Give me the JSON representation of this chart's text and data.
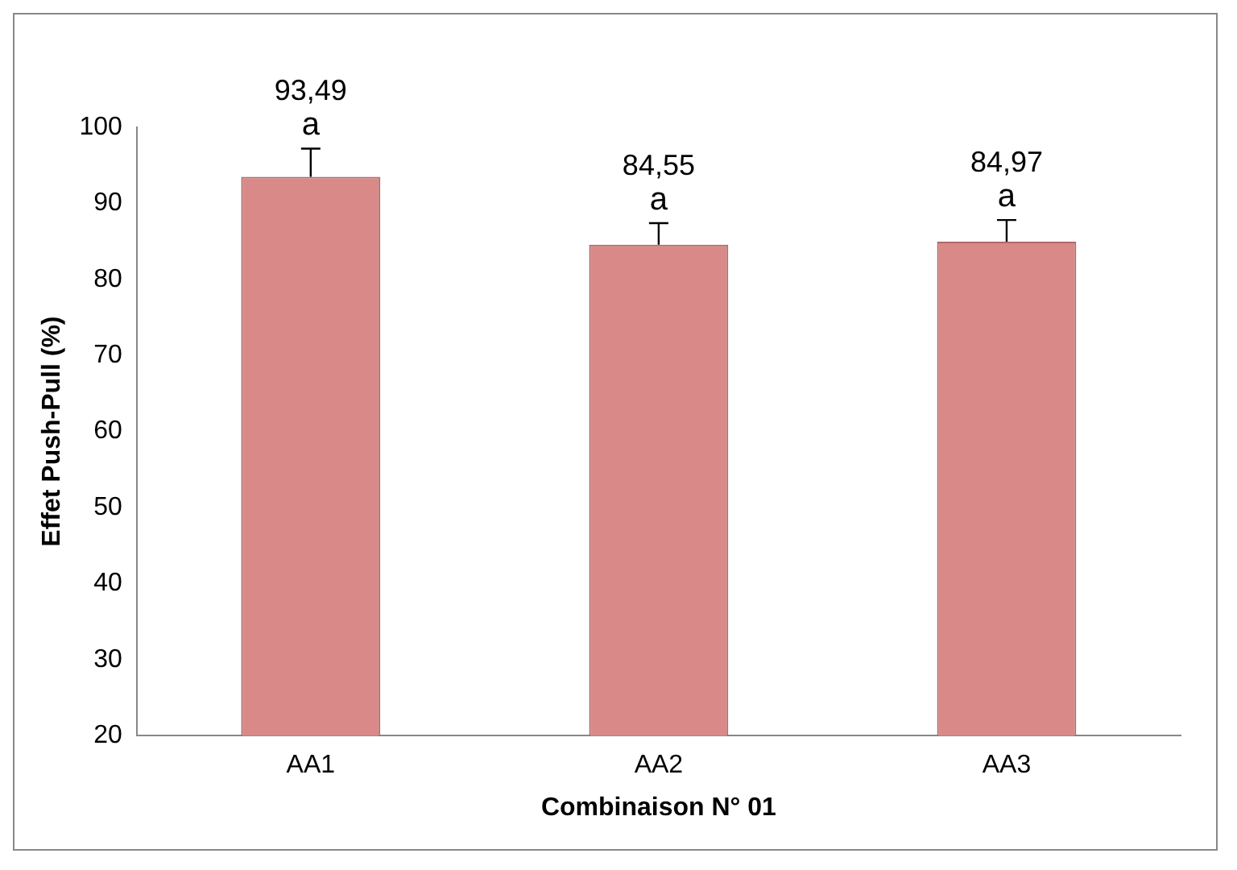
{
  "chart_data": {
    "type": "bar",
    "xlabel": "Combinaison N° 01",
    "ylabel": "Effet Push-Pull (%)",
    "categories": [
      "AA1",
      "AA2",
      "AA3"
    ],
    "values": [
      93.49,
      84.55,
      84.97
    ],
    "color": "#d98a88",
    "value_labels": [
      "93,49",
      "84,55",
      "84,97"
    ],
    "errors": [
      [
        93.49,
        97.2
      ],
      [
        84.55,
        87.4
      ],
      [
        84.97,
        87.8
      ]
    ],
    "annotations": [
      {
        "text": "a",
        "x": "AA1",
        "y": 97.2
      },
      {
        "text": "a",
        "x": "AA2",
        "y": 87.4
      },
      {
        "text": "a",
        "x": "AA3",
        "y": 87.8
      }
    ],
    "ylim": [
      20,
      100
    ],
    "yticks": [
      20,
      30,
      40,
      50,
      60,
      70,
      80,
      90,
      100
    ],
    "grid": false,
    "legend": false
  }
}
